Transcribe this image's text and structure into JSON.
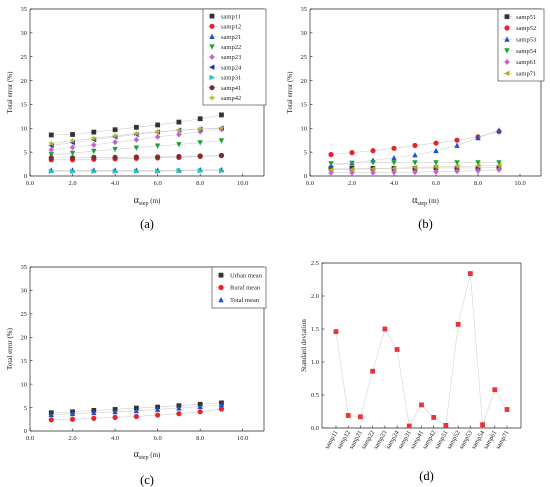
{
  "chart_data": [
    {
      "type": "line",
      "panel_label": "(a)",
      "xlabel_main": "α",
      "xlabel_sub": "step",
      "xlabel_unit": "(m)",
      "ylabel": "Total error (%)",
      "xlim": [
        0,
        11
      ],
      "ylim": [
        0,
        35
      ],
      "xticks": [
        "0.0",
        "2.0",
        "4.0",
        "6.0",
        "8.0",
        "10.0"
      ],
      "yticks": [
        "0",
        "5",
        "10",
        "15",
        "20",
        "25",
        "30",
        "35"
      ],
      "legend": "top-right",
      "x": [
        1,
        2,
        3,
        4,
        5,
        6,
        7,
        8,
        9
      ],
      "series": [
        {
          "name": "samp11",
          "marker": "square",
          "color": "#333333",
          "values": [
            8.6,
            8.7,
            9.2,
            9.7,
            10.2,
            10.7,
            11.3,
            12.0,
            12.8
          ]
        },
        {
          "name": "samp12",
          "marker": "circle",
          "color": "#e8232b",
          "values": [
            3.4,
            3.4,
            3.5,
            3.6,
            3.7,
            3.8,
            3.9,
            4.1,
            4.3
          ]
        },
        {
          "name": "samp21",
          "marker": "triangle-up",
          "color": "#1f4fd6",
          "values": [
            1.2,
            1.2,
            1.2,
            1.2,
            1.2,
            1.2,
            1.2,
            1.3,
            1.3
          ]
        },
        {
          "name": "samp22",
          "marker": "triangle-down",
          "color": "#17a33a",
          "values": [
            4.5,
            4.8,
            5.2,
            5.6,
            5.9,
            6.3,
            6.6,
            7.0,
            7.4
          ]
        },
        {
          "name": "samp23",
          "marker": "diamond",
          "color": "#c85fd8",
          "values": [
            5.5,
            6.0,
            6.5,
            7.1,
            7.6,
            8.2,
            8.7,
            9.3,
            9.8
          ]
        },
        {
          "name": "samp24",
          "marker": "triangle-left",
          "color": "#1f2db0",
          "values": [
            6.4,
            7.0,
            7.6,
            8.2,
            8.7,
            9.2,
            9.6,
            9.8,
            10.0
          ]
        },
        {
          "name": "samp31",
          "marker": "triangle-right",
          "color": "#14c9b7",
          "values": [
            1.0,
            1.0,
            1.0,
            1.0,
            1.0,
            1.0,
            1.1,
            1.1,
            1.1
          ]
        },
        {
          "name": "samp41",
          "marker": "circle",
          "color": "#7a2e2e",
          "values": [
            3.8,
            3.8,
            3.9,
            3.9,
            4.0,
            4.0,
            4.1,
            4.2,
            4.3
          ]
        },
        {
          "name": "samp42",
          "marker": "star",
          "color": "#b8b81a",
          "values": [
            6.8,
            7.4,
            7.9,
            8.4,
            8.9,
            9.3,
            9.6,
            9.9,
            10.1
          ]
        }
      ]
    },
    {
      "type": "line",
      "panel_label": "(b)",
      "xlabel_main": "α",
      "xlabel_sub": "step",
      "xlabel_unit": "(m)",
      "ylabel": "Total error (%)",
      "xlim": [
        0,
        11
      ],
      "ylim": [
        0,
        35
      ],
      "xticks": [
        "0.0",
        "2.0",
        "4.0",
        "6.0",
        "8.0",
        "10.0"
      ],
      "yticks": [
        "0",
        "5",
        "10",
        "15",
        "20",
        "25",
        "30",
        "35"
      ],
      "legend": "top-right",
      "x": [
        1,
        2,
        3,
        4,
        5,
        6,
        7,
        8,
        9
      ],
      "series": [
        {
          "name": "samp51",
          "marker": "square",
          "color": "#333333",
          "values": [
            1.6,
            1.6,
            1.6,
            1.6,
            1.6,
            1.7,
            1.7,
            1.7,
            1.8
          ]
        },
        {
          "name": "samp52",
          "marker": "circle",
          "color": "#e8232b",
          "values": [
            4.5,
            4.9,
            5.3,
            5.8,
            6.4,
            6.9,
            7.5,
            8.2,
            9.3
          ]
        },
        {
          "name": "samp53",
          "marker": "triangle-up",
          "color": "#1f4fd6",
          "values": [
            2.2,
            2.7,
            3.3,
            3.8,
            4.4,
            5.3,
            6.4,
            8.0,
            9.6
          ]
        },
        {
          "name": "samp54",
          "marker": "triangle-down",
          "color": "#17a33a",
          "values": [
            2.6,
            2.7,
            2.8,
            2.8,
            2.8,
            2.8,
            2.8,
            2.8,
            2.8
          ]
        },
        {
          "name": "samp61",
          "marker": "diamond",
          "color": "#c85fd8",
          "values": [
            0.7,
            0.7,
            0.7,
            0.8,
            0.8,
            0.9,
            1.0,
            1.1,
            1.3
          ]
        },
        {
          "name": "samp71",
          "marker": "triangle-left",
          "color": "#b8a81a",
          "values": [
            1.3,
            1.4,
            1.5,
            1.6,
            1.8,
            1.9,
            2.0,
            2.1,
            2.2
          ]
        }
      ]
    },
    {
      "type": "line",
      "panel_label": "(c)",
      "xlabel_main": "α",
      "xlabel_sub": "step",
      "xlabel_unit": "(m)",
      "ylabel": "Total error (%)",
      "xlim": [
        0,
        11
      ],
      "ylim": [
        0,
        35
      ],
      "xticks": [
        "0.0",
        "2.0",
        "4.0",
        "6.0",
        "8.0",
        "10.0"
      ],
      "yticks": [
        "0",
        "5",
        "10",
        "15",
        "20",
        "25",
        "30",
        "35"
      ],
      "legend": "top-right",
      "x": [
        1,
        2,
        3,
        4,
        5,
        6,
        7,
        8,
        9
      ],
      "series": [
        {
          "name": "Urban mean",
          "marker": "square",
          "color": "#333333",
          "values": [
            3.9,
            4.1,
            4.4,
            4.6,
            4.9,
            5.1,
            5.4,
            5.7,
            6.0
          ]
        },
        {
          "name": "Rural mean",
          "marker": "circle",
          "color": "#e8232b",
          "values": [
            2.4,
            2.5,
            2.7,
            2.9,
            3.1,
            3.4,
            3.7,
            4.1,
            4.7
          ]
        },
        {
          "name": "Total mean",
          "marker": "triangle-up",
          "color": "#1f4fd6",
          "values": [
            3.5,
            3.7,
            3.9,
            4.1,
            4.3,
            4.6,
            4.9,
            5.2,
            5.6
          ]
        }
      ]
    },
    {
      "type": "line",
      "panel_label": "(d)",
      "ylabel": "Standard deviation",
      "ylim": [
        0,
        2.5
      ],
      "yticks": [
        "0.0",
        "0.5",
        "1.0",
        "1.5",
        "2.0",
        "2.5"
      ],
      "marker": "square",
      "color": "#e8333a",
      "line_color": "#d8d8d8",
      "categories": [
        "samp11",
        "samp12",
        "samp21",
        "samp22",
        "samp23",
        "samp24",
        "samp31",
        "samp41",
        "samp42",
        "samp51",
        "samp52",
        "samp53",
        "samp54",
        "samp61",
        "samp71"
      ],
      "values": [
        1.46,
        0.19,
        0.17,
        0.86,
        1.5,
        1.19,
        0.03,
        0.35,
        0.16,
        0.04,
        1.57,
        2.34,
        0.05,
        0.58,
        0.28
      ]
    }
  ]
}
